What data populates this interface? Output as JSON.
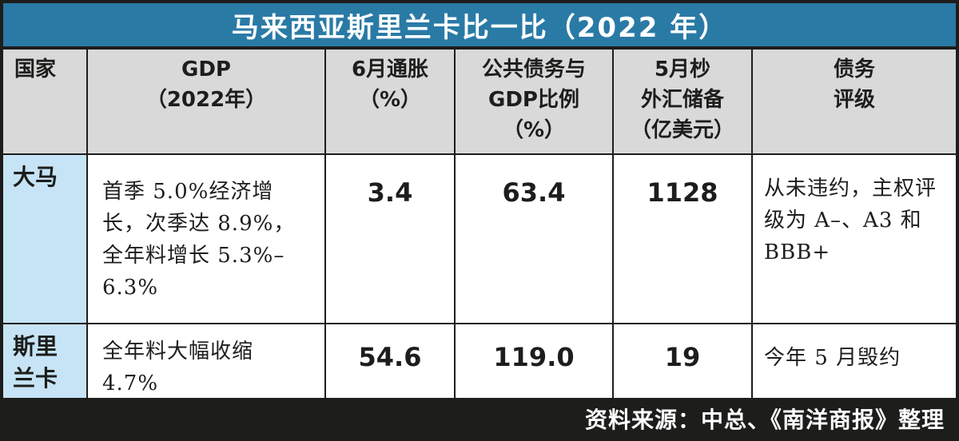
{
  "title": "马来西亚斯里兰卡比一比（2022 年）",
  "headers": {
    "country": "国家",
    "gdp": [
      "GDP",
      "（2022年）"
    ],
    "inflation": [
      "6月通胀",
      "（%）"
    ],
    "debt": [
      "公共债务与",
      "GDP比例",
      "（%）"
    ],
    "reserves": [
      "5月杪",
      "外汇储备",
      "（亿美元）"
    ],
    "rating": [
      "债务",
      "评级"
    ]
  },
  "rows": [
    {
      "country": [
        "大马"
      ],
      "gdp": "首季 5.0%经济增长，次季达 8.9%，全年料增长 5.3%–6.3%",
      "inflation": "3.4",
      "debt": "63.4",
      "reserves": "1128",
      "rating": "从未违约，主权评级为 A–、A3 和 BBB+"
    },
    {
      "country": [
        "斯里",
        "兰卡"
      ],
      "gdp": "全年料大幅收缩 4.7%",
      "inflation": "54.6",
      "debt": "119.0",
      "reserves": "19",
      "rating": "今年 5 月毁约"
    }
  ],
  "source": "资料来源：中总、《南洋商报》整理",
  "colors": {
    "title_bg": "#2a7aa6",
    "header_bg": "#d8d9d8",
    "country_bg": "#c6e4f5",
    "border": "#1d1d1b"
  }
}
